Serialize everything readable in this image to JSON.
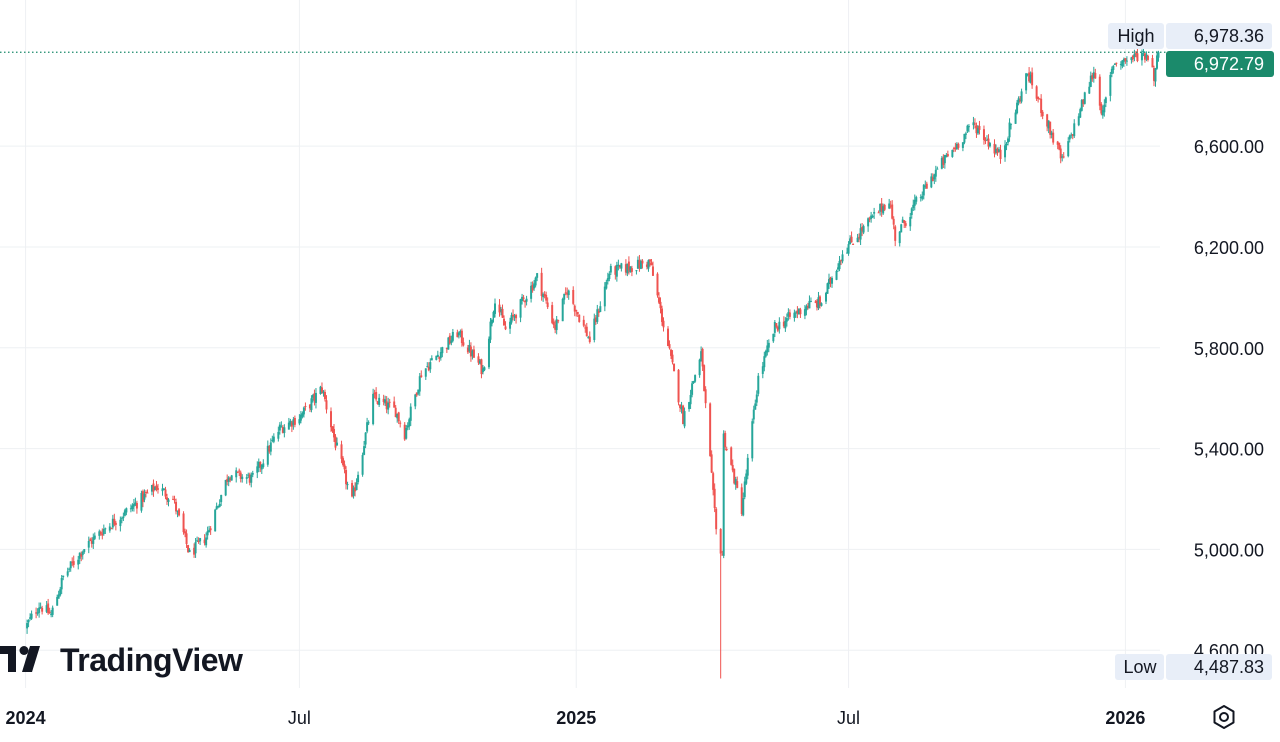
{
  "brand": {
    "name": "TradingView"
  },
  "price_scale": {
    "high_label": "High",
    "high_value": "6,978.36",
    "last_value": "6,972.79",
    "low_label": "Low",
    "low_value": "4,487.83"
  },
  "settings": {
    "icon": "settings-gear-icon"
  },
  "colors": {
    "up": "#26a69a",
    "down": "#ef5350",
    "last_bg": "#1b8a6b",
    "badge_bg": "#e8eef8",
    "grid": "#eef0f3"
  },
  "chart_data": {
    "type": "candlestick",
    "xaxis": {
      "range": [
        "2023-12-15",
        "2026-01-24"
      ],
      "ticks": [
        {
          "date": "2024-01-01",
          "label": "2024",
          "bold": true
        },
        {
          "date": "2024-07-01",
          "label": "Jul",
          "bold": false
        },
        {
          "date": "2025-01-01",
          "label": "2025",
          "bold": true
        },
        {
          "date": "2025-07-01",
          "label": "Jul",
          "bold": false
        },
        {
          "date": "2026-01-01",
          "label": "2026",
          "bold": true
        }
      ]
    },
    "yaxis": {
      "ylim": [
        4450,
        7180
      ],
      "ticks": [
        {
          "value": 4600,
          "label": "4,600.00"
        },
        {
          "value": 5000,
          "label": "5,000.00"
        },
        {
          "value": 5400,
          "label": "5,400.00"
        },
        {
          "value": 5800,
          "label": "5,800.00"
        },
        {
          "value": 6200,
          "label": "6,200.00"
        },
        {
          "value": 6600,
          "label": "6,600.00"
        }
      ]
    },
    "high": 6978.36,
    "low": 4487.83,
    "last": 6972.79,
    "anchors": [
      [
        "2024-01-02",
        4700
      ],
      [
        "2024-01-10",
        4780
      ],
      [
        "2024-01-18",
        4740
      ],
      [
        "2024-01-26",
        4890
      ],
      [
        "2024-02-08",
        5000
      ],
      [
        "2024-02-22",
        5080
      ],
      [
        "2024-03-08",
        5150
      ],
      [
        "2024-03-28",
        5250
      ],
      [
        "2024-04-08",
        5200
      ],
      [
        "2024-04-19",
        4980
      ],
      [
        "2024-04-30",
        5050
      ],
      [
        "2024-05-15",
        5300
      ],
      [
        "2024-05-31",
        5280
      ],
      [
        "2024-06-18",
        5480
      ],
      [
        "2024-07-02",
        5530
      ],
      [
        "2024-07-16",
        5640
      ],
      [
        "2024-07-25",
        5420
      ],
      [
        "2024-08-05",
        5190
      ],
      [
        "2024-08-19",
        5600
      ],
      [
        "2024-09-03",
        5550
      ],
      [
        "2024-09-09",
        5460
      ],
      [
        "2024-09-20",
        5700
      ],
      [
        "2024-10-14",
        5860
      ],
      [
        "2024-10-31",
        5710
      ],
      [
        "2024-11-08",
        6000
      ],
      [
        "2024-11-15",
        5870
      ],
      [
        "2024-12-06",
        6080
      ],
      [
        "2024-12-18",
        5880
      ],
      [
        "2024-12-26",
        6030
      ],
      [
        "2025-01-10",
        5830
      ],
      [
        "2025-01-23",
        6100
      ],
      [
        "2025-02-19",
        6140
      ],
      [
        "2025-03-04",
        5780
      ],
      [
        "2025-03-13",
        5520
      ],
      [
        "2025-03-25",
        5780
      ],
      [
        "2025-04-04",
        5070
      ],
      [
        "2025-04-08",
        4980
      ],
      [
        "2025-04-09",
        5450
      ],
      [
        "2025-04-21",
        5160
      ],
      [
        "2025-05-02",
        5680
      ],
      [
        "2025-05-13",
        5880
      ],
      [
        "2025-06-04",
        5970
      ],
      [
        "2025-06-13",
        5980
      ],
      [
        "2025-06-27",
        6180
      ],
      [
        "2025-07-28",
        6390
      ],
      [
        "2025-08-01",
        6240
      ],
      [
        "2025-08-28",
        6500
      ],
      [
        "2025-09-22",
        6690
      ],
      [
        "2025-10-10",
        6560
      ],
      [
        "2025-10-28",
        6890
      ],
      [
        "2025-11-20",
        6540
      ],
      [
        "2025-12-11",
        6900
      ],
      [
        "2025-12-17",
        6720
      ],
      [
        "2025-12-24",
        6930
      ],
      [
        "2026-01-06",
        6950
      ],
      [
        "2026-01-12",
        6970
      ],
      [
        "2026-01-16",
        6960
      ],
      [
        "2026-01-20",
        6880
      ],
      [
        "2026-01-23",
        6972.79
      ]
    ]
  }
}
